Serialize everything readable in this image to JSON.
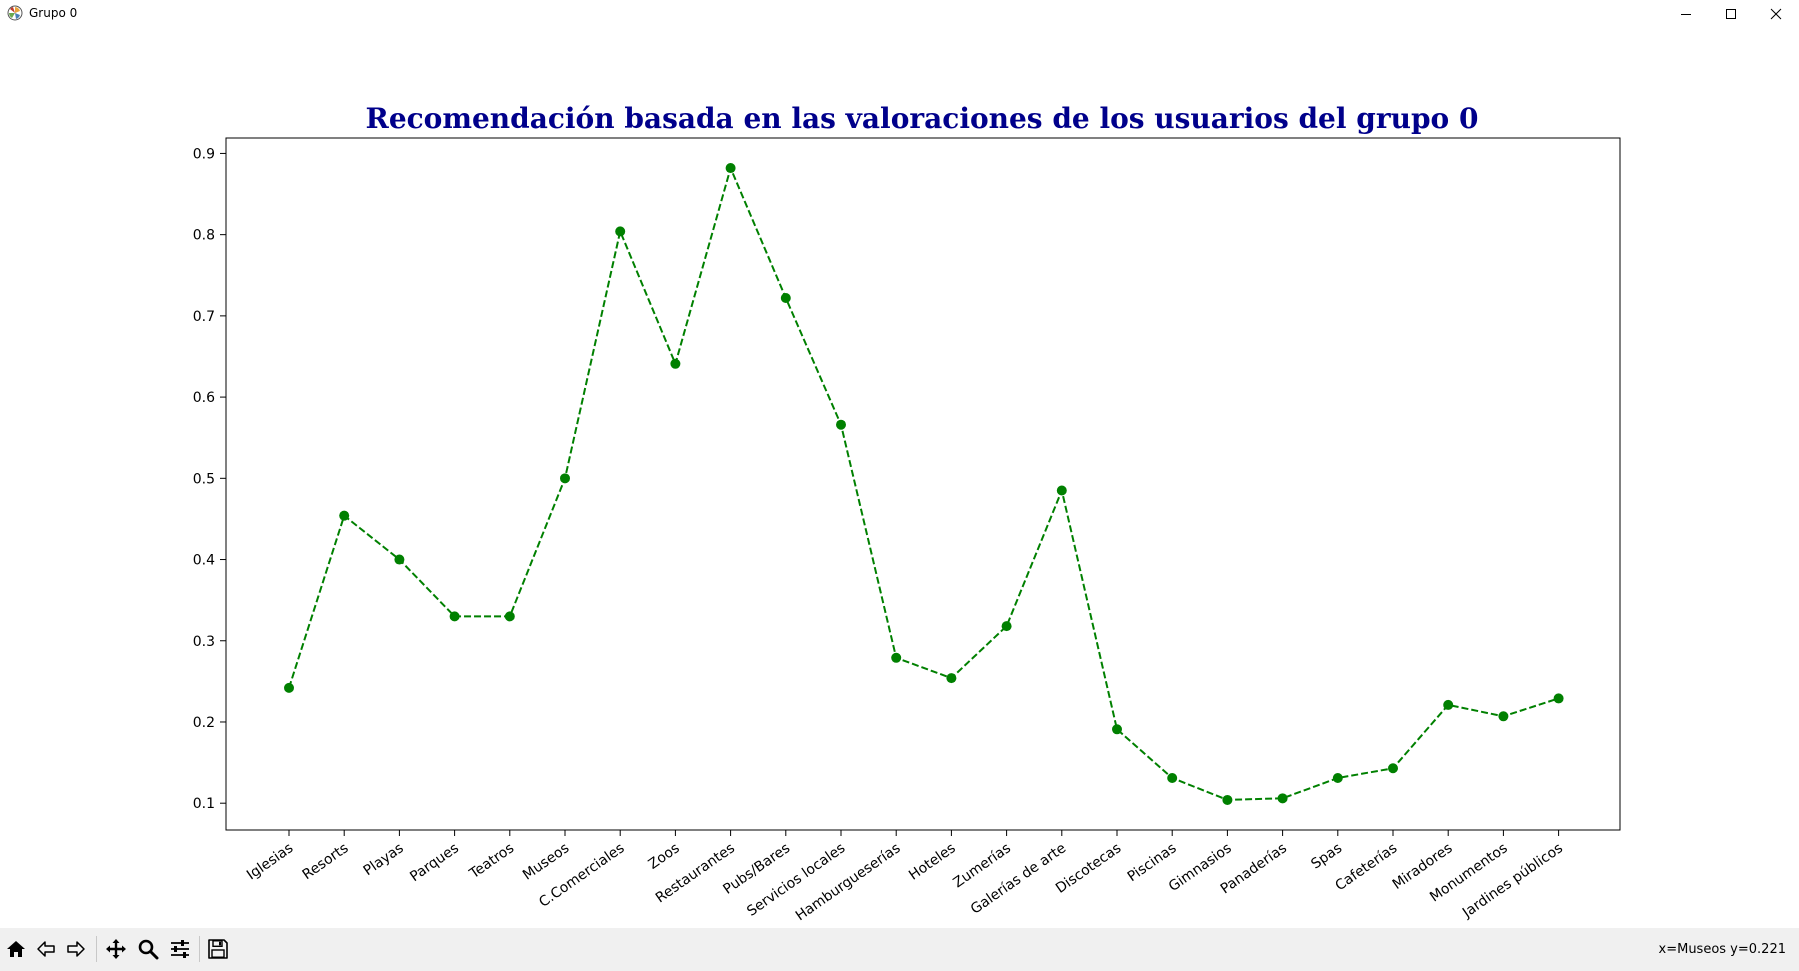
{
  "window": {
    "title": "Grupo 0",
    "icons": {
      "app": "matplotlib-icon",
      "minimize": "minimize-icon",
      "maximize": "maximize-icon",
      "close": "close-icon"
    }
  },
  "toolbar": {
    "buttons": [
      {
        "name": "home",
        "icon": "home-icon"
      },
      {
        "name": "back",
        "icon": "arrow-left-icon"
      },
      {
        "name": "forward",
        "icon": "arrow-right-icon"
      },
      {
        "name": "pan",
        "icon": "move-icon"
      },
      {
        "name": "zoom",
        "icon": "magnifier-icon"
      },
      {
        "name": "configure-subplots",
        "icon": "sliders-icon"
      },
      {
        "name": "save",
        "icon": "floppy-disk-icon"
      }
    ],
    "status": "x=Museos y=0.221"
  },
  "chart_data": {
    "type": "line",
    "title": "Recomendación basada en las valoraciones de los usuarios del grupo 0",
    "xlabel": "",
    "ylabel": "",
    "categories": [
      "Iglesias",
      "Resorts",
      "Playas",
      "Parques",
      "Teatros",
      "Museos",
      "C.Comerciales",
      "Zoos",
      "Restaurantes",
      "Pubs/Bares",
      "Servicios locales",
      "Hamburgueserías",
      "Hoteles",
      "Zumerías",
      "Galerías de arte",
      "Discotecas",
      "Piscinas",
      "Gimnasios",
      "Panaderías",
      "Spas",
      "Cafeterías",
      "Miradores",
      "Monumentos",
      "Jardines públicos"
    ],
    "series": [
      {
        "values": [
          0.242,
          0.454,
          0.4,
          0.33,
          0.33,
          0.5,
          0.804,
          0.641,
          0.882,
          0.722,
          0.566,
          0.279,
          0.254,
          0.318,
          0.485,
          0.191,
          0.131,
          0.104,
          0.106,
          0.131,
          0.143,
          0.221,
          0.207,
          0.229
        ],
        "color": "#008000",
        "linestyle": "dashed",
        "marker": "circle"
      }
    ],
    "yticks": [
      0.1,
      0.2,
      0.3,
      0.4,
      0.5,
      0.6,
      0.7,
      0.8,
      0.9
    ],
    "ylim": [
      0.067,
      0.919
    ],
    "grid": false,
    "legend": "none",
    "xtick_rotation": 35,
    "colors": {
      "title": "#00008b",
      "line": "#008000",
      "axes": "#000000"
    }
  }
}
